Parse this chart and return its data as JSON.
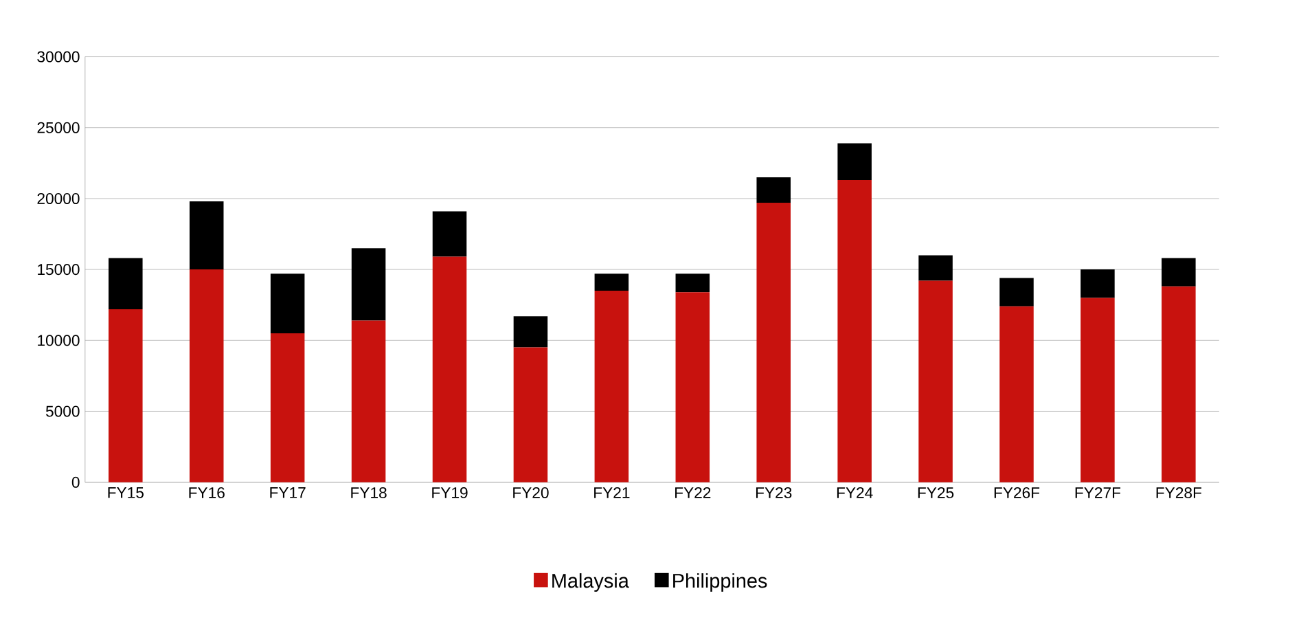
{
  "chart_data": {
    "type": "bar",
    "stacked": true,
    "categories": [
      "FY15",
      "FY16",
      "FY17",
      "FY18",
      "FY19",
      "FY20",
      "FY21",
      "FY22",
      "FY23",
      "FY24",
      "FY25",
      "FY26F",
      "FY27F",
      "FY28F"
    ],
    "series": [
      {
        "name": "Malaysia",
        "color": "#c8120e",
        "values": [
          12200,
          15000,
          10500,
          11400,
          15900,
          9500,
          13500,
          13400,
          19700,
          21300,
          14200,
          12400,
          13000,
          13800
        ]
      },
      {
        "name": "Philippines",
        "color": "#000000",
        "values": [
          3600,
          4800,
          4200,
          5100,
          3200,
          2200,
          1200,
          1300,
          1800,
          2600,
          1800,
          2000,
          2000,
          2000
        ]
      }
    ],
    "ylim": [
      0,
      30000
    ],
    "yticks": [
      0,
      5000,
      10000,
      15000,
      20000,
      25000,
      30000
    ],
    "grid": "y",
    "legend": "bottom"
  }
}
